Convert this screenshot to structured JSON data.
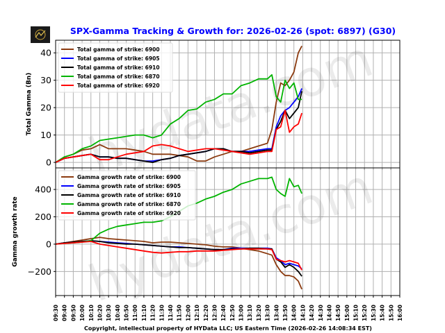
{
  "title": "SPX-Gamma Tracking & Growth for: 2026-02-26 (spot: 6897) (G30)",
  "footer": "Copyright, intellectual property of HYData LLC; US Eastern Time (2026-02-26 14:08:34 EST)",
  "watermark": "hydata.com",
  "colors": {
    "6900": "#8b3a0f",
    "6905": "#0000ff",
    "6910": "#000000",
    "6870": "#00b400",
    "6920": "#ff0000",
    "title": "#0000ff"
  },
  "chart_data": [
    {
      "type": "line",
      "ylabel": "Total Gamma (Bn)",
      "ylim": [
        -2,
        44.6
      ],
      "yticks": [
        0,
        10,
        20,
        30,
        40
      ],
      "grid": true,
      "legend": "top-left",
      "x": [
        "09:30",
        "09:40",
        "09:50",
        "10:00",
        "10:10",
        "10:20",
        "10:30",
        "10:40",
        "10:50",
        "11:00",
        "11:10",
        "11:20",
        "11:30",
        "11:40",
        "11:50",
        "12:00",
        "12:10",
        "12:20",
        "12:30",
        "12:40",
        "12:50",
        "13:00",
        "13:10",
        "13:20",
        "13:30",
        "13:35",
        "13:40",
        "13:45",
        "13:50",
        "13:55",
        "14:00",
        "14:05",
        "14:09"
      ],
      "series": [
        {
          "name": "Total gamma of strike: 6900",
          "key": "6900",
          "values": [
            0,
            2,
            3,
            4.5,
            5,
            6.5,
            5,
            5,
            5,
            4.5,
            4,
            3,
            3,
            3,
            2.5,
            2,
            0.5,
            0.5,
            2,
            3,
            4,
            4,
            5,
            6,
            7,
            12,
            22,
            29,
            28,
            30,
            33,
            40,
            42.5
          ]
        },
        {
          "name": "Total gamma of strike: 6905",
          "key": "6905",
          "values": [
            0,
            1.5,
            2,
            2.5,
            3,
            2,
            2,
            1.5,
            1.5,
            1,
            0.5,
            0.5,
            1,
            1.5,
            2.5,
            3,
            3.5,
            4,
            5,
            5,
            4,
            4,
            4,
            4.5,
            5,
            5,
            13,
            17,
            19,
            20,
            22,
            24,
            27
          ]
        },
        {
          "name": "Total gamma of strike: 6910",
          "key": "6910",
          "values": [
            0,
            1.5,
            2,
            2.5,
            3,
            2,
            2,
            1.5,
            1.5,
            1,
            0.5,
            0,
            1,
            1.5,
            2.5,
            3,
            3.5,
            4,
            5,
            5,
            4,
            4,
            3.5,
            4,
            4.5,
            4.5,
            12,
            15,
            19,
            16,
            18,
            20,
            26
          ]
        },
        {
          "name": "Total gamma of strike: 6870",
          "key": "6870",
          "values": [
            0,
            2,
            3,
            5,
            6,
            8,
            8.5,
            9,
            9.5,
            10,
            10,
            9,
            10,
            14,
            16,
            19,
            19.5,
            22,
            23,
            25,
            25,
            28,
            29,
            30.5,
            30.5,
            32,
            24,
            22,
            30,
            27,
            29,
            23,
            23
          ]
        },
        {
          "name": "Total gamma of strike: 6920",
          "key": "6920",
          "values": [
            0,
            1.5,
            2,
            2.5,
            3,
            1,
            1,
            2,
            3,
            3.5,
            4,
            6,
            6.5,
            6,
            5,
            4,
            4.5,
            5,
            5,
            4.5,
            4,
            3.5,
            3,
            3.5,
            4,
            4,
            12,
            13,
            19,
            11,
            13,
            14,
            18
          ]
        }
      ]
    },
    {
      "type": "line",
      "ylabel": "Gamma growth rate",
      "ylim": [
        -376,
        558
      ],
      "yticks": [
        -200,
        0,
        200,
        400
      ],
      "grid": true,
      "legend": "top-left",
      "xlim": [
        "09:30",
        "16:00"
      ],
      "xticks": [
        "09:30",
        "09:40",
        "09:50",
        "10:00",
        "10:10",
        "10:20",
        "10:30",
        "10:40",
        "10:50",
        "11:00",
        "11:10",
        "11:20",
        "11:30",
        "11:40",
        "11:50",
        "12:00",
        "12:10",
        "12:20",
        "12:30",
        "12:40",
        "12:50",
        "13:00",
        "13:10",
        "13:20",
        "13:30",
        "13:40",
        "13:50",
        "14:00",
        "14:10",
        "14:20",
        "14:30",
        "14:40",
        "14:50",
        "15:00",
        "15:10",
        "15:20",
        "15:30",
        "15:40",
        "15:50",
        "16:00"
      ],
      "x": [
        "09:30",
        "09:40",
        "09:50",
        "10:00",
        "10:10",
        "10:20",
        "10:30",
        "10:40",
        "10:50",
        "11:00",
        "11:10",
        "11:20",
        "11:30",
        "11:40",
        "11:50",
        "12:00",
        "12:10",
        "12:20",
        "12:30",
        "12:40",
        "12:50",
        "13:00",
        "13:10",
        "13:20",
        "13:30",
        "13:35",
        "13:40",
        "13:45",
        "13:50",
        "13:55",
        "14:00",
        "14:05",
        "14:09"
      ],
      "series": [
        {
          "name": "Gamma growth rate of strike: 6900",
          "key": "6900",
          "values": [
            0,
            10,
            20,
            30,
            40,
            50,
            40,
            35,
            30,
            25,
            20,
            10,
            15,
            15,
            10,
            5,
            0,
            -5,
            -15,
            -20,
            -20,
            -30,
            -40,
            -50,
            -70,
            -80,
            -150,
            -200,
            -230,
            -230,
            -240,
            -270,
            -330
          ]
        },
        {
          "name": "Gamma growth rate of strike: 6905",
          "key": "6905",
          "values": [
            0,
            10,
            15,
            20,
            25,
            20,
            15,
            10,
            5,
            0,
            -5,
            -10,
            -15,
            -20,
            -20,
            -25,
            -30,
            -35,
            -40,
            -40,
            -30,
            -30,
            -30,
            -30,
            -30,
            -35,
            -100,
            -120,
            -150,
            -140,
            -150,
            -160,
            -180
          ]
        },
        {
          "name": "Gamma growth rate of strike: 6910",
          "key": "6910",
          "values": [
            0,
            10,
            15,
            20,
            25,
            20,
            10,
            5,
            0,
            0,
            -5,
            -10,
            -15,
            -20,
            -25,
            -25,
            -30,
            -35,
            -40,
            -40,
            -35,
            -35,
            -30,
            -30,
            -35,
            -35,
            -110,
            -130,
            -170,
            -150,
            -170,
            -200,
            -235
          ]
        },
        {
          "name": "Gamma growth rate of strike: 6870",
          "key": "6870",
          "values": [
            0,
            5,
            10,
            15,
            25,
            80,
            110,
            130,
            140,
            150,
            160,
            160,
            170,
            200,
            240,
            280,
            300,
            330,
            350,
            380,
            400,
            440,
            460,
            480,
            480,
            490,
            400,
            370,
            350,
            480,
            420,
            430,
            370
          ]
        },
        {
          "name": "Gamma growth rate of strike: 6920",
          "key": "6920",
          "values": [
            0,
            5,
            10,
            15,
            20,
            0,
            -10,
            -20,
            -30,
            -40,
            -50,
            -60,
            -65,
            -60,
            -55,
            -55,
            -50,
            -50,
            -50,
            -45,
            -40,
            -35,
            -35,
            -35,
            -35,
            -40,
            -110,
            -120,
            -130,
            -120,
            -130,
            -140,
            -190
          ]
        }
      ]
    }
  ]
}
